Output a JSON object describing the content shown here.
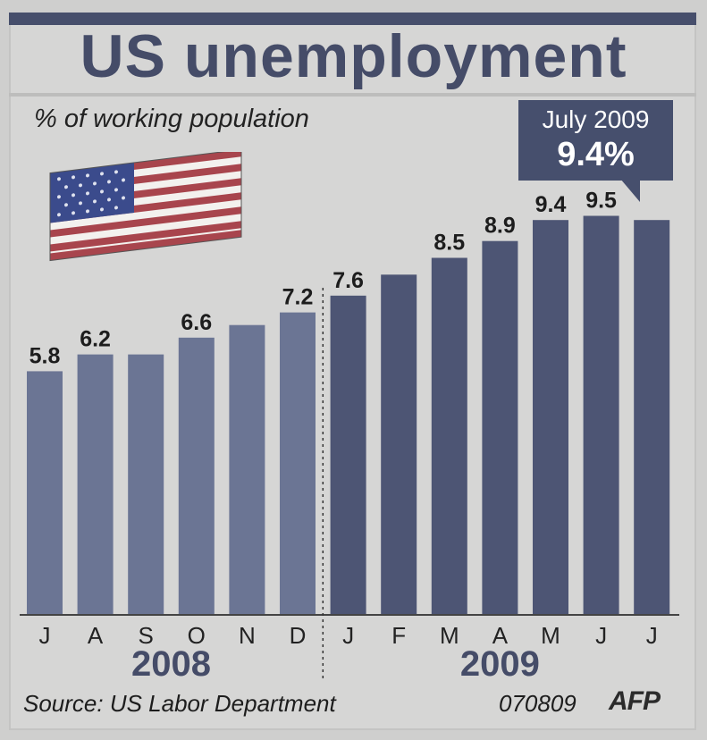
{
  "header": {
    "title": "US unemployment",
    "subtitle": "% of working population"
  },
  "callout": {
    "label": "July 2009",
    "value": "9.4%"
  },
  "footer": {
    "source": "Source: US Labor Department",
    "code": "070809",
    "logo": "AFP"
  },
  "colors": {
    "bar_2008": "#6b7594",
    "bar_2009": "#4d5574",
    "title": "#454c68"
  },
  "flag_icon": "us-flag-icon",
  "chart_data": {
    "type": "bar",
    "title": "US unemployment",
    "subtitle": "% of working population",
    "categories": [
      "J",
      "A",
      "S",
      "O",
      "N",
      "D",
      "J",
      "F",
      "M",
      "A",
      "M",
      "J",
      "J"
    ],
    "values": [
      5.8,
      6.2,
      6.2,
      6.6,
      6.9,
      7.2,
      7.6,
      8.1,
      8.5,
      8.9,
      9.4,
      9.5,
      9.4
    ],
    "data_labels": [
      "5.8",
      "6.2",
      "",
      "6.6",
      "",
      "7.2",
      "7.6",
      "",
      "8.5",
      "8.9",
      "9.4",
      "9.5",
      ""
    ],
    "years": [
      {
        "label": "2008",
        "from": 0,
        "to": 5
      },
      {
        "label": "2009",
        "from": 6,
        "to": 12
      }
    ],
    "xlabel": "",
    "ylabel": "",
    "ylim": [
      0,
      9.5
    ],
    "grid": false,
    "legend": "none"
  }
}
